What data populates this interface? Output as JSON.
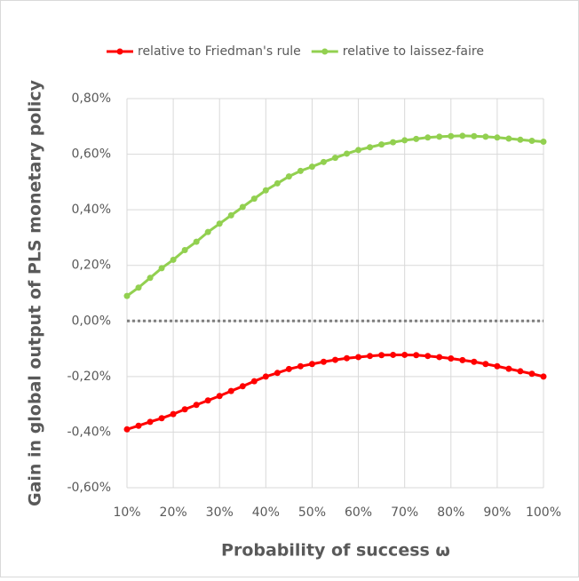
{
  "chart_data": {
    "type": "line",
    "y_label": "Gain in global output of PLS monetary policy",
    "x_label": "Probability of success ω",
    "x": [
      10,
      12.5,
      15,
      17.5,
      20,
      22.5,
      25,
      27.5,
      30,
      32.5,
      35,
      37.5,
      40,
      42.5,
      45,
      47.5,
      50,
      52.5,
      55,
      57.5,
      60,
      62.5,
      65,
      67.5,
      70,
      72.5,
      75,
      77.5,
      80,
      82.5,
      85,
      87.5,
      90,
      92.5,
      95,
      97.5,
      100
    ],
    "series": [
      {
        "name": "relative to Friedman's rule",
        "color": "#ff0000",
        "values": [
          -0.39,
          -0.377,
          -0.363,
          -0.35,
          -0.335,
          -0.318,
          -0.302,
          -0.286,
          -0.27,
          -0.252,
          -0.235,
          -0.217,
          -0.2,
          -0.187,
          -0.173,
          -0.163,
          -0.155,
          -0.147,
          -0.14,
          -0.134,
          -0.13,
          -0.126,
          -0.123,
          -0.122,
          -0.122,
          -0.123,
          -0.126,
          -0.13,
          -0.135,
          -0.141,
          -0.147,
          -0.155,
          -0.163,
          -0.172,
          -0.181,
          -0.19,
          -0.2
        ]
      },
      {
        "name": "relative to laissez-faire",
        "color": "#92d050",
        "values": [
          0.09,
          0.12,
          0.155,
          0.19,
          0.22,
          0.255,
          0.285,
          0.32,
          0.35,
          0.38,
          0.41,
          0.44,
          0.47,
          0.495,
          0.52,
          0.54,
          0.555,
          0.572,
          0.587,
          0.602,
          0.615,
          0.625,
          0.635,
          0.643,
          0.65,
          0.655,
          0.66,
          0.663,
          0.665,
          0.666,
          0.665,
          0.663,
          0.66,
          0.656,
          0.652,
          0.648,
          0.645
        ]
      }
    ],
    "hline": 0,
    "xlim": [
      10,
      100
    ],
    "xticks": [
      {
        "value": 10,
        "label": "10%"
      },
      {
        "value": 20,
        "label": "20%"
      },
      {
        "value": 30,
        "label": "30%"
      },
      {
        "value": 40,
        "label": "40%"
      },
      {
        "value": 50,
        "label": "50%"
      },
      {
        "value": 60,
        "label": "60%"
      },
      {
        "value": 70,
        "label": "70%"
      },
      {
        "value": 80,
        "label": "80%"
      },
      {
        "value": 90,
        "label": "90%"
      },
      {
        "value": 100,
        "label": "100%"
      }
    ],
    "ylim": [
      -0.6,
      0.8
    ],
    "yticks": [
      {
        "value": -0.6,
        "label": "-0,60%"
      },
      {
        "value": -0.4,
        "label": "-0,40%"
      },
      {
        "value": -0.2,
        "label": "-0,20%"
      },
      {
        "value": 0,
        "label": "0,00%"
      },
      {
        "value": 0.2,
        "label": "0,20%"
      },
      {
        "value": 0.4,
        "label": "0,40%"
      },
      {
        "value": 0.6,
        "label": "0,60%"
      },
      {
        "value": 0.8,
        "label": "0,80%"
      }
    ],
    "grid": true,
    "legend": "top"
  }
}
